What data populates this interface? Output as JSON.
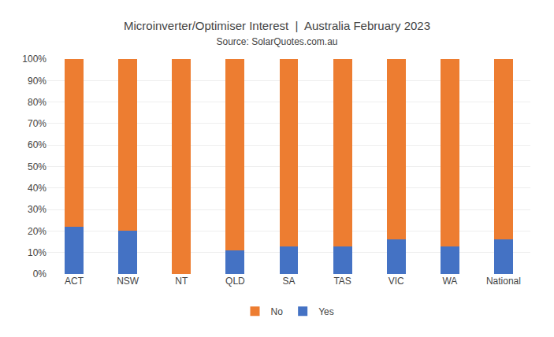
{
  "chart_data": {
    "type": "bar",
    "title": "Microinverter/Optimiser Interest  |  Australia February 2023",
    "subtitle": "Source: SolarQuotes.com.au",
    "categories": [
      "ACT",
      "NSW",
      "NT",
      "QLD",
      "SA",
      "TAS",
      "VIC",
      "WA",
      "National"
    ],
    "series": [
      {
        "name": "Yes",
        "color": "#4472C4",
        "values": [
          22,
          20,
          0,
          11,
          13,
          13,
          16,
          13,
          16
        ]
      },
      {
        "name": "No",
        "color": "#ED7D31",
        "values": [
          78,
          80,
          100,
          89,
          87,
          87,
          84,
          87,
          84
        ]
      }
    ],
    "stacked": true,
    "ylim": [
      0,
      100
    ],
    "yticks": [
      {
        "value": 0,
        "label": "0%"
      },
      {
        "value": 10,
        "label": "10%"
      },
      {
        "value": 20,
        "label": "20%"
      },
      {
        "value": 30,
        "label": "30%"
      },
      {
        "value": 40,
        "label": "40%"
      },
      {
        "value": 50,
        "label": "50%"
      },
      {
        "value": 60,
        "label": "60%"
      },
      {
        "value": 70,
        "label": "70%"
      },
      {
        "value": 80,
        "label": "80%"
      },
      {
        "value": 90,
        "label": "90%"
      },
      {
        "value": 100,
        "label": "100%"
      }
    ],
    "grid": true,
    "legend": "bottom"
  }
}
